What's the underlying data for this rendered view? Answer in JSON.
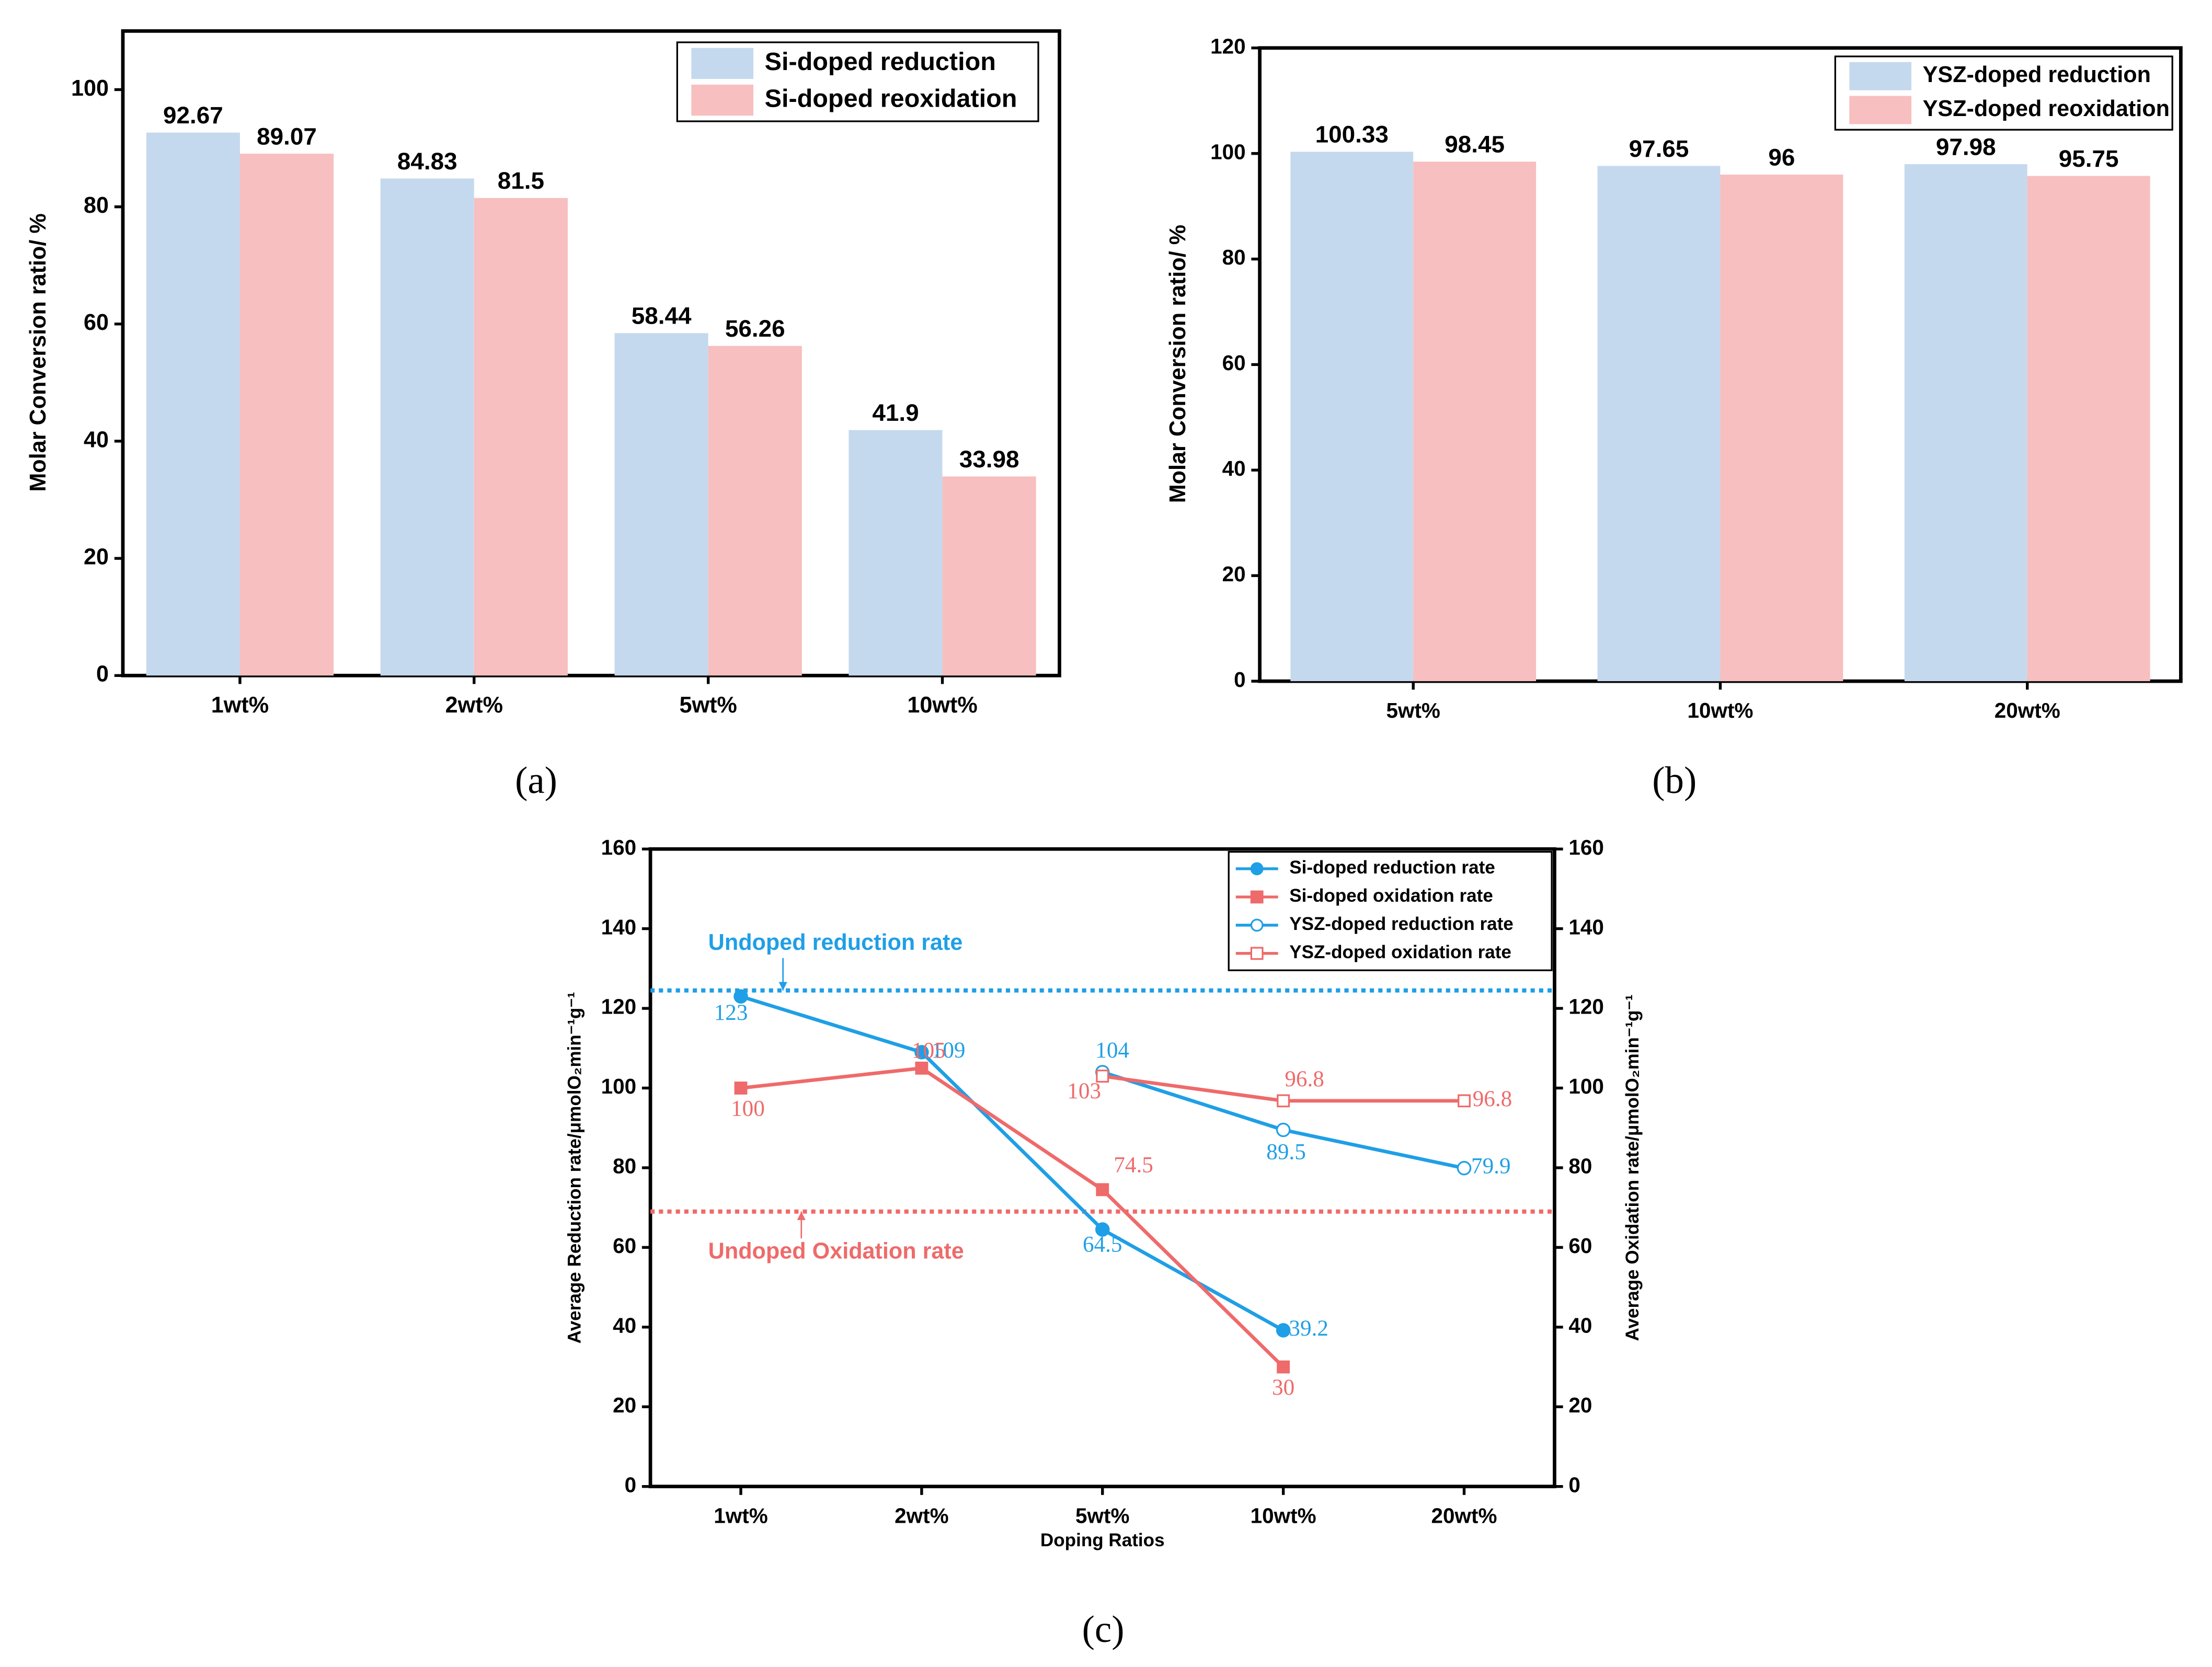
{
  "chart_data": [
    {
      "type": "bar",
      "panel_label": "(a)",
      "y_label": "Molar Conversion ratio/ %",
      "categories": [
        "1wt%",
        "2wt%",
        "5wt%",
        "10wt%"
      ],
      "series": [
        {
          "name": "Si-doped reduction",
          "color": "#c5d9ee",
          "values": [
            92.67,
            84.83,
            58.44,
            41.9
          ]
        },
        {
          "name": "Si-doped reoxidation",
          "color": "#f7bfbf",
          "values": [
            89.07,
            81.5,
            56.26,
            33.98
          ]
        }
      ],
      "ylim": [
        0,
        110
      ],
      "yticks": [
        0,
        20,
        40,
        60,
        80,
        100
      ],
      "legend": "upper right"
    },
    {
      "type": "bar",
      "panel_label": "(b)",
      "y_label": "Molar Conversion ratio/ %",
      "categories": [
        "5wt%",
        "10wt%",
        "20wt%"
      ],
      "series": [
        {
          "name": "YSZ-doped reduction",
          "color": "#c5d9ee",
          "values": [
            100.33,
            97.65,
            97.98
          ]
        },
        {
          "name": "YSZ-doped reoxidation",
          "color": "#f7bfbf",
          "values": [
            98.45,
            96,
            95.75
          ]
        }
      ],
      "ylim": [
        0,
        120
      ],
      "yticks": [
        0,
        20,
        40,
        60,
        80,
        100,
        120
      ],
      "legend": "upper right"
    },
    {
      "type": "line",
      "panel_label": "(c)",
      "x_label": "Doping Ratios",
      "y_label": "Average Reduction rate/μmolO₂min⁻¹g⁻¹",
      "y2_label": "Average Oxidation rate/μmolO₂min⁻¹g⁻¹",
      "categories": [
        "1wt%",
        "2wt%",
        "5wt%",
        "10wt%",
        "20wt%"
      ],
      "series": [
        {
          "name": "Si-doped reduction rate",
          "color": "#1f9fe6",
          "marker": "circle",
          "filled": true,
          "values": [
            123,
            109,
            64.5,
            39.2,
            null
          ]
        },
        {
          "name": "Si-doped oxidation rate",
          "color": "#ef6a6a",
          "marker": "square",
          "filled": true,
          "axis": "y2",
          "values": [
            100,
            105,
            74.5,
            30,
            null
          ]
        },
        {
          "name": "YSZ-doped reduction rate",
          "color": "#1f9fe6",
          "marker": "circle",
          "filled": false,
          "values": [
            null,
            null,
            104,
            89.5,
            79.9
          ]
        },
        {
          "name": "YSZ-doped oxidation rate",
          "color": "#ef6a6a",
          "marker": "square",
          "filled": false,
          "axis": "y2",
          "values": [
            null,
            null,
            103,
            96.8,
            96.8
          ]
        }
      ],
      "reference_lines": [
        {
          "label": "Undoped reduction rate",
          "value": 124.5,
          "color": "#1f9fe6"
        },
        {
          "label": "Undoped Oxidation rate",
          "value": 69,
          "color": "#ef6a6a",
          "axis": "y2"
        }
      ],
      "ylim": [
        0,
        160
      ],
      "yticks": [
        0,
        20,
        40,
        60,
        80,
        100,
        120,
        140,
        160
      ],
      "y2lim": [
        0,
        160
      ],
      "y2ticks": [
        0,
        20,
        40,
        60,
        80,
        100,
        120,
        140,
        160
      ],
      "legend": "upper right"
    }
  ]
}
